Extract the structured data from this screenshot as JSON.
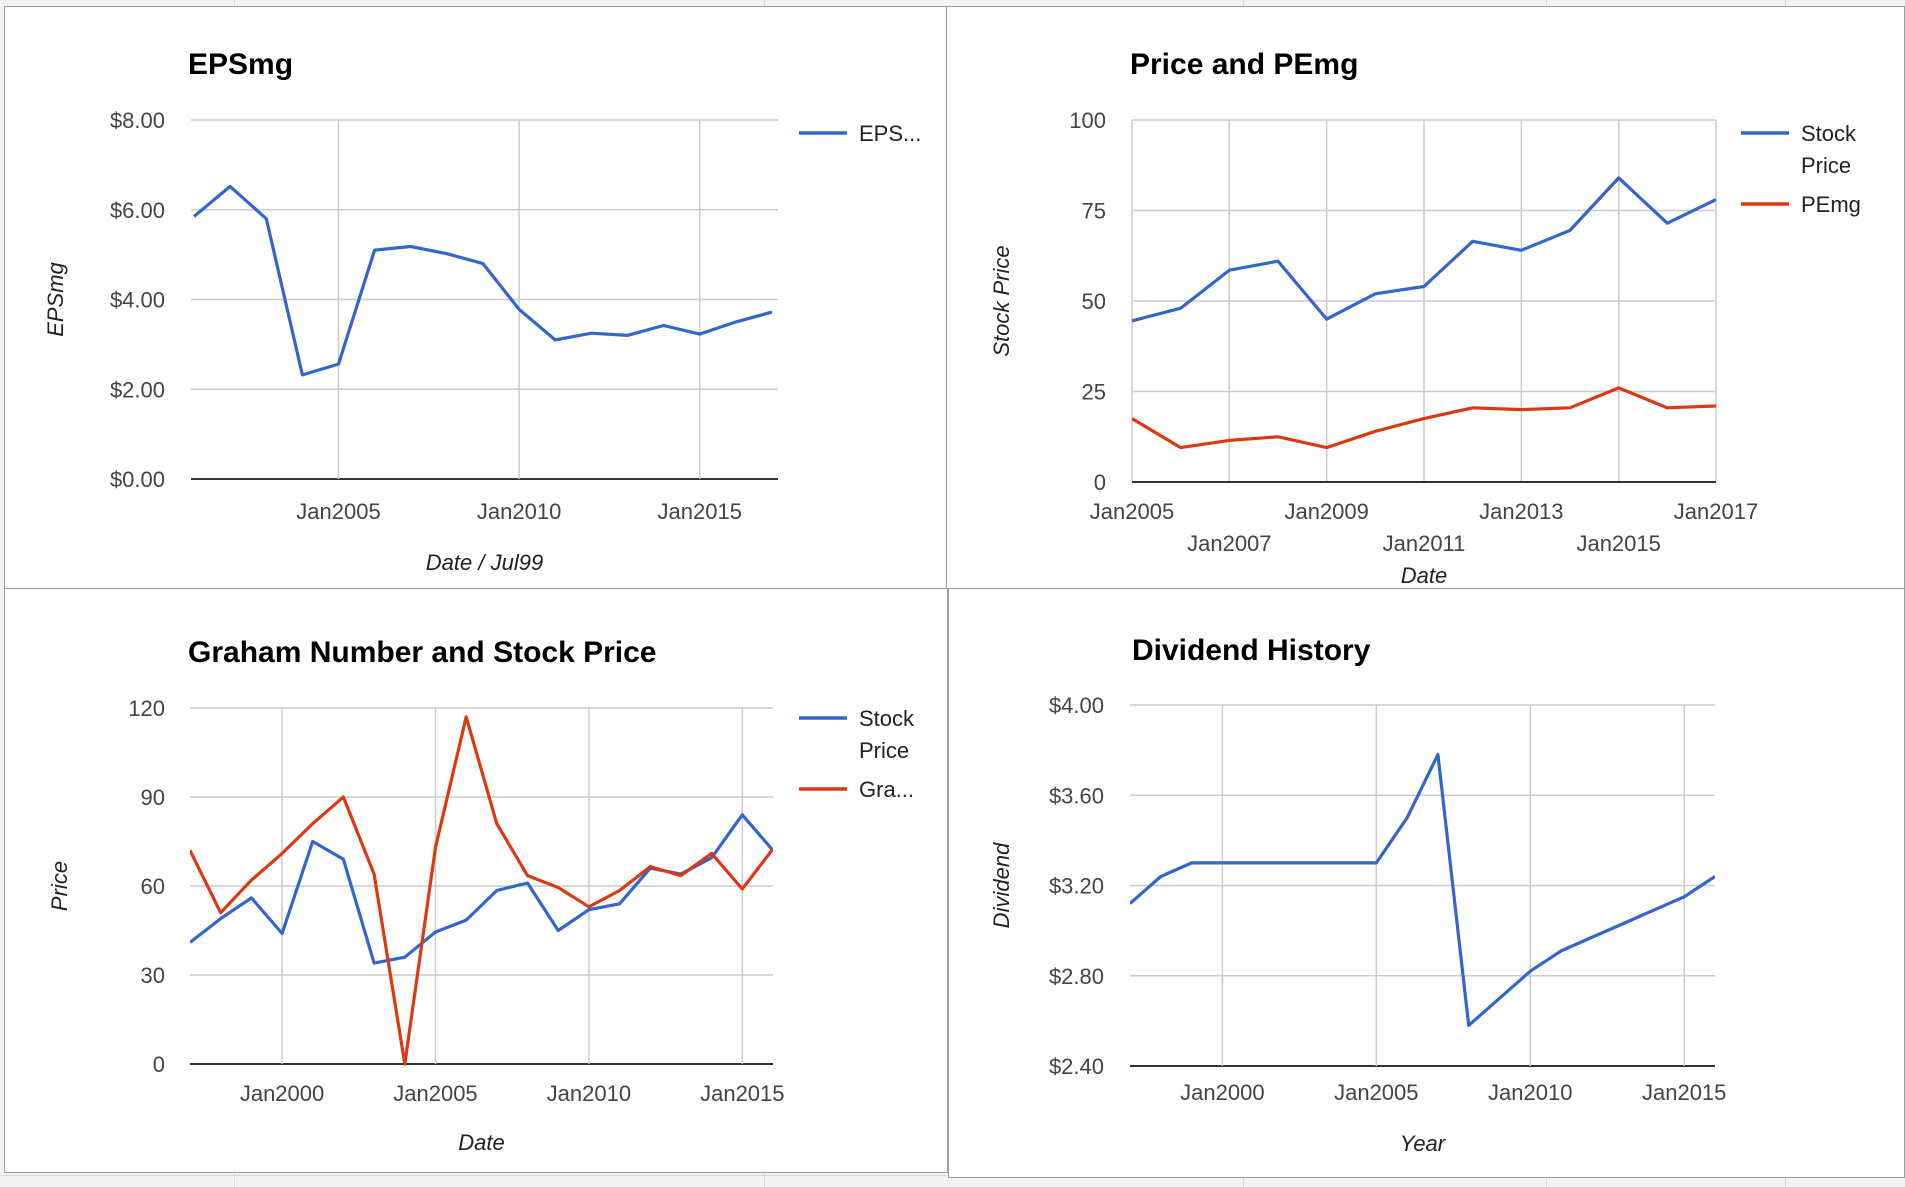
{
  "colors": {
    "blue": "#3366cc",
    "red": "#dc3912",
    "grid": "#cccccc"
  },
  "chart_data": [
    {
      "type": "line",
      "title": "EPSmg",
      "xlabel": "Date / Jul99",
      "ylabel": "EPSmg",
      "x_ticks": [
        "Jan2005",
        "Jan2010",
        "Jan2015"
      ],
      "y_ticks": [
        "$0.00",
        "$2.00",
        "$4.00",
        "$6.00",
        "$8.00"
      ],
      "xlim": [
        "2000-12",
        "2017-03"
      ],
      "ylim": [
        0,
        8
      ],
      "grid": true,
      "legend_position": "right",
      "x": [
        "2001-01",
        "2002-01",
        "2003-01",
        "2004-01",
        "2005-01",
        "2006-01",
        "2007-01",
        "2008-01",
        "2009-01",
        "2010-01",
        "2011-01",
        "2012-01",
        "2013-01",
        "2014-01",
        "2015-01",
        "2016-01",
        "2017-01"
      ],
      "series": [
        {
          "name": "EPS...",
          "color": "#3366cc",
          "values": [
            5.85,
            6.52,
            5.8,
            2.32,
            2.56,
            5.1,
            5.18,
            5.02,
            4.8,
            3.78,
            3.1,
            3.25,
            3.2,
            3.42,
            3.23,
            3.5,
            3.72
          ]
        }
      ]
    },
    {
      "type": "line",
      "title": "Price and PEmg",
      "xlabel": "Date",
      "ylabel": "Stock Price",
      "x_ticks": [
        "Jan2005",
        "Jan2007",
        "Jan2009",
        "Jan2011",
        "Jan2013",
        "Jan2015",
        "Jan2017"
      ],
      "y_ticks": [
        "0",
        "25",
        "50",
        "75",
        "100"
      ],
      "xlim": [
        "2005-01",
        "2017-01"
      ],
      "ylim": [
        0,
        100
      ],
      "grid": true,
      "legend_position": "right",
      "x": [
        "2005-01",
        "2006-01",
        "2007-01",
        "2008-01",
        "2009-01",
        "2010-01",
        "2011-01",
        "2012-01",
        "2013-01",
        "2014-01",
        "2015-01",
        "2016-01",
        "2017-01"
      ],
      "series": [
        {
          "name": "Stock Price",
          "color": "#3366cc",
          "values": [
            44.5,
            48,
            58.5,
            61,
            45,
            52,
            54,
            66.5,
            64,
            69.5,
            84,
            71.5,
            78
          ]
        },
        {
          "name": "PEmg",
          "color": "#dc3912",
          "values": [
            17.5,
            9.5,
            11.5,
            12.5,
            9.5,
            14,
            17.5,
            20.5,
            20,
            20.5,
            26,
            20.5,
            21
          ]
        }
      ]
    },
    {
      "type": "line",
      "title": "Graham Number and Stock Price",
      "xlabel": "Date",
      "ylabel": "Price",
      "x_ticks": [
        "Jan2000",
        "Jan2005",
        "Jan2010",
        "Jan2015"
      ],
      "y_ticks": [
        "0",
        "30",
        "60",
        "90",
        "120"
      ],
      "xlim": [
        "1997-01",
        "2016-01"
      ],
      "ylim": [
        0,
        120
      ],
      "grid": true,
      "legend_position": "right",
      "x": [
        "1997-01",
        "1998-01",
        "1999-01",
        "2000-01",
        "2001-01",
        "2002-01",
        "2003-01",
        "2004-01",
        "2005-01",
        "2006-01",
        "2007-01",
        "2008-01",
        "2009-01",
        "2010-01",
        "2011-01",
        "2012-01",
        "2013-01",
        "2014-01",
        "2015-01",
        "2016-01"
      ],
      "series": [
        {
          "name": "Stock Price",
          "color": "#3366cc",
          "values": [
            41,
            49,
            56,
            44,
            75,
            69,
            34,
            36,
            44.5,
            48.5,
            58.5,
            61,
            45,
            52,
            54,
            66,
            64,
            69.5,
            84,
            72
          ]
        },
        {
          "name": "Gra...",
          "color": "#dc3912",
          "values": [
            72,
            51,
            62,
            71,
            81,
            90,
            64,
            0,
            73,
            117,
            81,
            63.5,
            59.5,
            53,
            58.5,
            66.5,
            63.5,
            71,
            59,
            72.5
          ]
        }
      ]
    },
    {
      "type": "line",
      "title": "Dividend History",
      "xlabel": "Year",
      "ylabel": "Dividend",
      "x_ticks": [
        "Jan2000",
        "Jan2005",
        "Jan2010",
        "Jan2015"
      ],
      "y_ticks": [
        "$2.40",
        "$2.80",
        "$3.20",
        "$3.60",
        "$4.00"
      ],
      "xlim": [
        "1997-01",
        "2016-01"
      ],
      "ylim": [
        2.4,
        4.0
      ],
      "grid": true,
      "legend_position": "none",
      "x": [
        "1997-01",
        "1998-01",
        "1999-01",
        "2000-01",
        "2001-01",
        "2002-01",
        "2003-01",
        "2004-01",
        "2005-01",
        "2006-01",
        "2007-01",
        "2008-01",
        "2009-01",
        "2010-01",
        "2011-01",
        "2012-01",
        "2013-01",
        "2014-01",
        "2015-01",
        "2016-01"
      ],
      "series": [
        {
          "name": "",
          "color": "#3366cc",
          "values": [
            3.12,
            3.24,
            3.3,
            3.3,
            3.3,
            3.3,
            3.3,
            3.3,
            3.3,
            3.5,
            3.78,
            2.58,
            2.7,
            2.82,
            2.91,
            2.97,
            3.03,
            3.09,
            3.15,
            3.24
          ]
        }
      ]
    }
  ]
}
